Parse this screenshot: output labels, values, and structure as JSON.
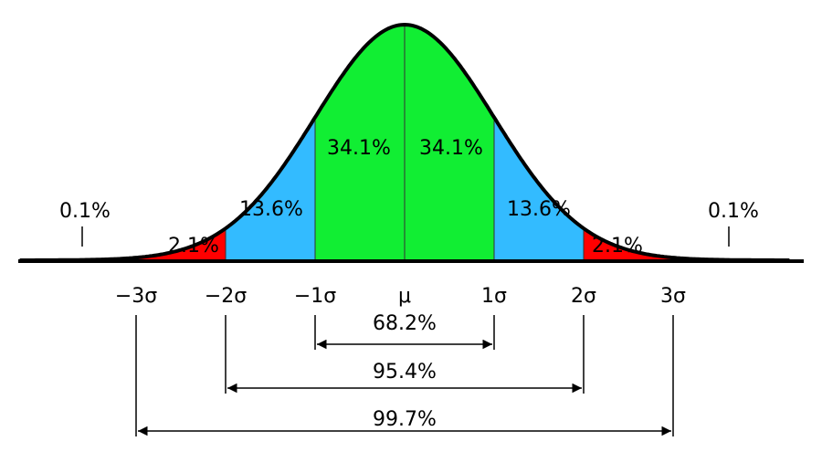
{
  "regions": [
    {
      "label": "0.1%"
    },
    {
      "label": "2.1%"
    },
    {
      "label": "13.6%"
    },
    {
      "label": "34.1%"
    },
    {
      "label": "34.1%"
    },
    {
      "label": "13.6%"
    },
    {
      "label": "2.1%"
    },
    {
      "label": "0.1%"
    }
  ],
  "axis_labels": [
    "−3σ",
    "−2σ",
    "−1σ",
    "μ",
    "1σ",
    "2σ",
    "3σ"
  ],
  "ranges": [
    {
      "label": "68.2%"
    },
    {
      "label": "95.4%"
    },
    {
      "label": "99.7%"
    }
  ]
}
